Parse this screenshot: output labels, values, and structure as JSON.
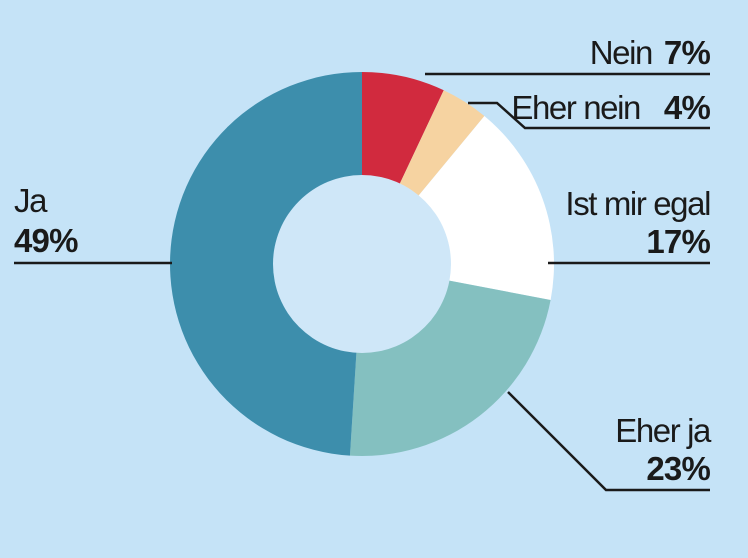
{
  "chart_data": {
    "type": "pie",
    "donut": true,
    "slices": [
      {
        "label": "Nein",
        "value": 7,
        "display": "7%",
        "color": "#d12a3e"
      },
      {
        "label": "Eher nein",
        "value": 4,
        "display": "4%",
        "color": "#f6d3a1"
      },
      {
        "label": "Ist mir egal",
        "value": 17,
        "display": "17%",
        "color": "#ffffff"
      },
      {
        "label": "Eher ja",
        "value": 23,
        "display": "23%",
        "color": "#84c0c0"
      },
      {
        "label": "Ja",
        "value": 49,
        "display": "49%",
        "color": "#3d8eac"
      }
    ],
    "center_color": "#cfe7f8",
    "background_color": "#c5e3f7",
    "line_color": "#1a1a1a",
    "legend": "none"
  }
}
